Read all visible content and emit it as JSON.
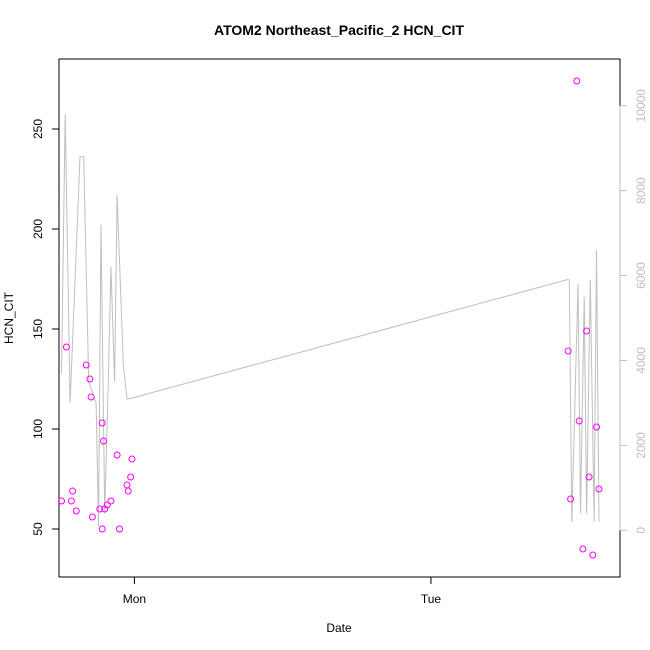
{
  "chart_data": {
    "type": "scatter",
    "title": "ATOM2 Northeast_Pacific_2 HCN_CIT",
    "xlabel": "Date",
    "ylabel": "HCN_CIT",
    "x_ticks": [
      {
        "label": "Mon",
        "value": 0
      },
      {
        "label": "Tue",
        "value": 24
      }
    ],
    "xlim": [
      -6.1,
      39.3
    ],
    "ylim": [
      26,
      285
    ],
    "y_ticks": [
      50,
      100,
      150,
      200,
      250
    ],
    "y2lim": [
      -1100,
      11100
    ],
    "y2_ticks": [
      0,
      2000,
      4000,
      6000,
      8000,
      10000
    ],
    "grid": false,
    "legend": "none",
    "colors": {
      "points": "#ff00ff",
      "line": "#bebebe",
      "axes": "#000000",
      "secondary_axis": "#bebebe"
    },
    "series": [
      {
        "axis": "left",
        "marker": "open-circle",
        "x": [
          -5.9,
          -5.5,
          -5.1,
          -5.0,
          -4.7,
          -3.9,
          -3.6,
          -3.5,
          -3.4,
          -2.8,
          -2.6,
          -2.6,
          -2.5,
          -2.4,
          -2.2,
          -1.9,
          -1.4,
          -1.2,
          -0.6,
          -0.5,
          -0.3,
          -0.2,
          35.1,
          35.3,
          35.8,
          36.0,
          36.3,
          36.6,
          36.8,
          37.1,
          37.4,
          37.6
        ],
        "y": [
          64,
          141,
          64,
          69,
          59,
          132,
          125,
          116,
          56,
          60,
          50,
          103,
          94,
          60,
          62,
          64,
          87,
          50,
          72,
          69,
          76,
          85,
          139,
          65,
          274,
          104,
          40,
          149,
          76,
          37,
          101,
          70
        ]
      },
      {
        "axis": "right",
        "marker": "line",
        "x": [
          -5.9,
          -5.6,
          -5.2,
          -4.4,
          -4.1,
          -3.7,
          -3.1,
          -2.9,
          -2.7,
          -2.4,
          -2.1,
          -1.9,
          -1.6,
          -1.4,
          -0.9,
          -0.6,
          -0.4,
          35.0,
          35.2,
          35.4,
          35.9,
          36.1,
          36.4,
          36.6,
          36.9,
          37.2,
          37.4,
          37.6
        ],
        "y": [
          3700,
          9800,
          3000,
          8800,
          8800,
          3500,
          3000,
          100,
          7200,
          400,
          3600,
          6200,
          3500,
          7900,
          3900,
          3100,
          3100,
          5900,
          5900,
          200,
          5800,
          400,
          5500,
          400,
          5900,
          200,
          6600,
          200
        ]
      }
    ]
  }
}
